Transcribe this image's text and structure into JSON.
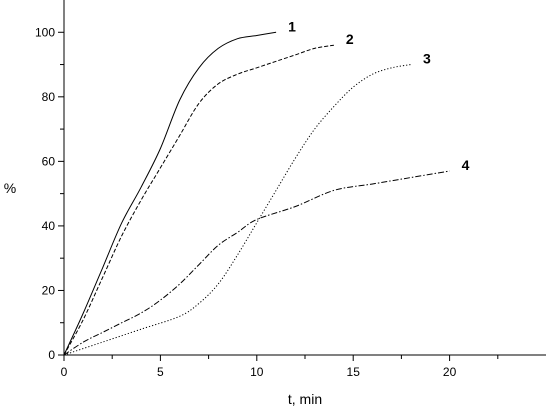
{
  "chart_data": {
    "type": "line",
    "xlabel": "t, min",
    "ylabel": "%",
    "xlim": [
      0,
      25
    ],
    "ylim": [
      0,
      110
    ],
    "x_ticks": [
      0,
      5,
      10,
      15,
      20
    ],
    "y_ticks": [
      0,
      20,
      40,
      60,
      80,
      100
    ],
    "x_tick_labels": [
      "0",
      "5",
      "10",
      "15",
      "20"
    ],
    "y_tick_labels": [
      "0",
      "20",
      "40",
      "60",
      "80",
      "100"
    ],
    "grid": false,
    "series": [
      {
        "name": "1",
        "line_style": "solid",
        "x": [
          0,
          1,
          2,
          3,
          4,
          5,
          6,
          7,
          8,
          9,
          10,
          11
        ],
        "y": [
          0,
          13,
          27,
          41,
          52,
          64,
          79,
          89,
          95,
          98,
          99,
          100
        ]
      },
      {
        "name": "2",
        "line_style": "dashed",
        "x": [
          0,
          1,
          2,
          3,
          4,
          5,
          6,
          7,
          8,
          9,
          10,
          11,
          12,
          13,
          14
        ],
        "y": [
          0,
          11,
          24,
          37,
          48,
          58,
          68,
          78,
          84,
          87,
          89,
          91,
          93,
          95,
          96
        ]
      },
      {
        "name": "3",
        "line_style": "dotted",
        "x": [
          0,
          2,
          4,
          6,
          7,
          8,
          9,
          10,
          11,
          12,
          13,
          14,
          15,
          16,
          17,
          18
        ],
        "y": [
          0,
          4,
          8,
          12,
          16,
          22,
          31,
          41,
          51,
          61,
          70,
          77,
          83,
          87,
          89,
          90
        ]
      },
      {
        "name": "4",
        "line_style": "dash-dot",
        "x": [
          0,
          1,
          2,
          3,
          4,
          5,
          6,
          7,
          8,
          9,
          10,
          12,
          14,
          16,
          18,
          20
        ],
        "y": [
          0,
          4,
          7,
          10,
          13,
          17,
          22,
          28,
          34,
          38,
          42,
          46,
          51,
          53,
          55,
          57
        ]
      }
    ]
  }
}
